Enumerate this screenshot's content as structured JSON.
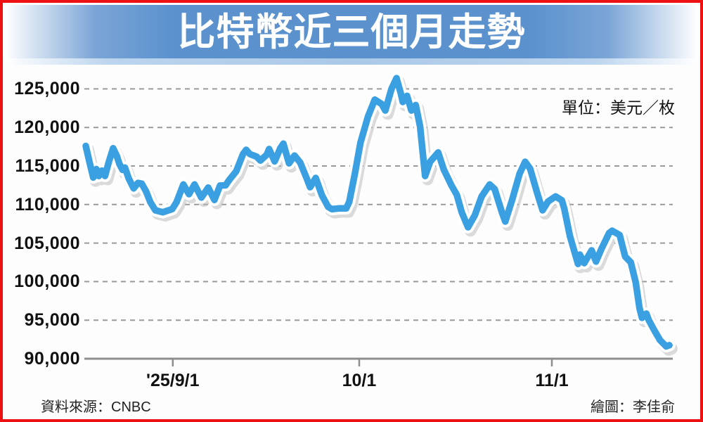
{
  "banner": {
    "title": "比特幣近三個月走勢",
    "bg_color": "#5b92ce",
    "strip_color": "#aac9e8"
  },
  "unit_label": "單位：美元／枚",
  "footer": {
    "source": "資料來源：CNBC",
    "credit": "繪圖：李佳俞"
  },
  "colors": {
    "line": "#3aa0e2",
    "casing": "#ffffff",
    "shadow": "#bdbdbd",
    "grid": "#9a9a9a",
    "axis": "#8e8e8e",
    "text": "#111111",
    "border": "#ee1114"
  },
  "chart_data": {
    "type": "line",
    "title": "比特幣近三個月走勢",
    "ylabel": "美元／枚",
    "ylim": [
      90000,
      127500
    ],
    "y_ticks": [
      125000,
      120000,
      115000,
      110000,
      105000,
      100000,
      95000,
      90000
    ],
    "x_axis": {
      "unit": "days from chart start (estimated ~'25/8/18)",
      "range": [
        0,
        94
      ]
    },
    "x_ticks": [
      {
        "label": "'25/9/1",
        "day": 14
      },
      {
        "label": "10/1",
        "day": 44
      },
      {
        "label": "11/1",
        "day": 75
      }
    ],
    "grid": "horizontal dashed, solid baseline at 90,000",
    "legend": "none",
    "series": [
      {
        "name": "Bitcoin price (USD per coin)",
        "points": [
          [
            0,
            117600
          ],
          [
            0.6,
            115500
          ],
          [
            1.2,
            113500
          ],
          [
            1.7,
            114600
          ],
          [
            2.1,
            113700
          ],
          [
            2.6,
            114400
          ],
          [
            3.1,
            113700
          ],
          [
            3.7,
            115500
          ],
          [
            4.4,
            117300
          ],
          [
            5,
            116300
          ],
          [
            5.4,
            115300
          ],
          [
            5.9,
            114500
          ],
          [
            6.3,
            114800
          ],
          [
            6.9,
            113400
          ],
          [
            7.7,
            112100
          ],
          [
            8.4,
            112800
          ],
          [
            9,
            112700
          ],
          [
            9.7,
            111700
          ],
          [
            10.4,
            110300
          ],
          [
            11.2,
            109250
          ],
          [
            12.4,
            109000
          ],
          [
            13.1,
            109200
          ],
          [
            13.9,
            109400
          ],
          [
            14.6,
            110300
          ],
          [
            15.7,
            112600
          ],
          [
            16.6,
            111350
          ],
          [
            17.5,
            112600
          ],
          [
            18.6,
            110900
          ],
          [
            19.7,
            112200
          ],
          [
            20.7,
            110600
          ],
          [
            21.6,
            112450
          ],
          [
            22.5,
            112500
          ],
          [
            23.1,
            113200
          ],
          [
            24.2,
            114300
          ],
          [
            25.3,
            116550
          ],
          [
            25.8,
            117100
          ],
          [
            26.4,
            116550
          ],
          [
            27.5,
            116200
          ],
          [
            28.1,
            115700
          ],
          [
            29.1,
            116450
          ],
          [
            29.5,
            117200
          ],
          [
            30.4,
            115600
          ],
          [
            31.3,
            117300
          ],
          [
            31.8,
            117900
          ],
          [
            32.7,
            115350
          ],
          [
            33.6,
            116350
          ],
          [
            34.5,
            115450
          ],
          [
            35.5,
            113500
          ],
          [
            36.1,
            112250
          ],
          [
            37,
            113450
          ],
          [
            38,
            111200
          ],
          [
            39,
            109700
          ],
          [
            39.6,
            109400
          ],
          [
            40.7,
            109500
          ],
          [
            41.9,
            109500
          ],
          [
            42.4,
            110350
          ],
          [
            43.3,
            114000
          ],
          [
            44.2,
            118000
          ],
          [
            45.4,
            121400
          ],
          [
            46.5,
            123600
          ],
          [
            47.6,
            123050
          ],
          [
            48.2,
            122200
          ],
          [
            49.2,
            125000
          ],
          [
            50,
            126400
          ],
          [
            50.7,
            124400
          ],
          [
            51,
            123300
          ],
          [
            51.7,
            124100
          ],
          [
            52.4,
            122200
          ],
          [
            53.1,
            122900
          ],
          [
            53.8,
            120100
          ],
          [
            54.6,
            113700
          ],
          [
            55.4,
            115550
          ],
          [
            56.7,
            116750
          ],
          [
            57.6,
            114550
          ],
          [
            58.8,
            112550
          ],
          [
            59.7,
            111250
          ],
          [
            60.5,
            109000
          ],
          [
            61.5,
            107050
          ],
          [
            62.6,
            108600
          ],
          [
            63.7,
            111050
          ],
          [
            65,
            112600
          ],
          [
            65.8,
            112000
          ],
          [
            67,
            108900
          ],
          [
            67.5,
            107800
          ],
          [
            68.6,
            110600
          ],
          [
            69.8,
            114000
          ],
          [
            70.7,
            115550
          ],
          [
            71.5,
            114650
          ],
          [
            72.6,
            111600
          ],
          [
            73.5,
            109250
          ],
          [
            74.4,
            110400
          ],
          [
            75.6,
            111050
          ],
          [
            76.6,
            110550
          ],
          [
            77,
            109450
          ],
          [
            77.9,
            105900
          ],
          [
            79.2,
            102300
          ],
          [
            79.5,
            103500
          ],
          [
            80.2,
            102400
          ],
          [
            81.4,
            104050
          ],
          [
            82.1,
            102600
          ],
          [
            83,
            104300
          ],
          [
            84.2,
            106300
          ],
          [
            84.7,
            106600
          ],
          [
            85.9,
            106050
          ],
          [
            86.8,
            103250
          ],
          [
            87.7,
            102500
          ],
          [
            88.5,
            99850
          ],
          [
            89.1,
            96550
          ],
          [
            89.5,
            95300
          ],
          [
            90.2,
            95850
          ],
          [
            90.6,
            95000
          ],
          [
            91.5,
            93650
          ],
          [
            92.4,
            92400
          ],
          [
            93.4,
            91600
          ],
          [
            93.9,
            91750
          ]
        ]
      }
    ]
  }
}
